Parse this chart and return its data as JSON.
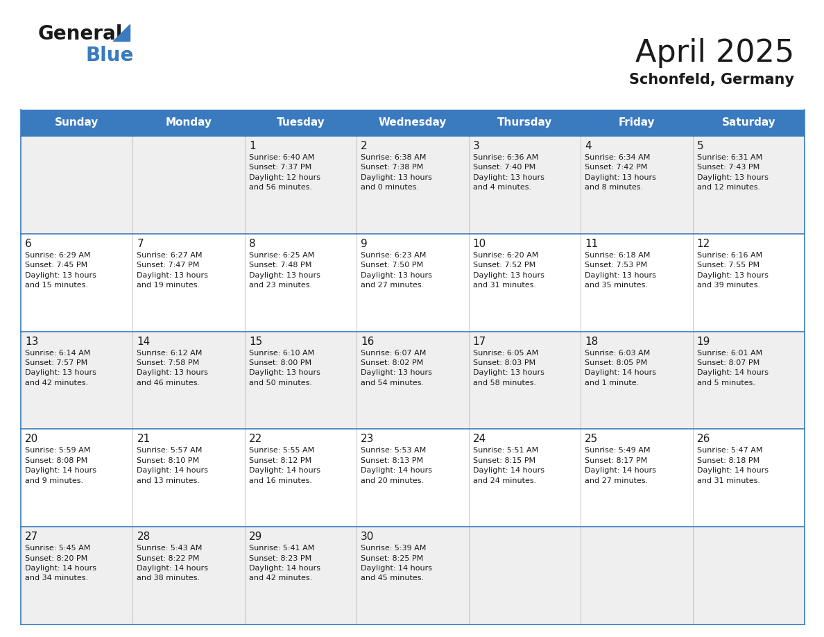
{
  "title": "April 2025",
  "subtitle": "Schonfeld, Germany",
  "header_color": "#3a7abf",
  "header_text_color": "#ffffff",
  "cell_bg_even": "#efefef",
  "cell_bg_odd": "#ffffff",
  "text_color": "#1a1a1a",
  "line_color": "#3a7abf",
  "days_of_week": [
    "Sunday",
    "Monday",
    "Tuesday",
    "Wednesday",
    "Thursday",
    "Friday",
    "Saturday"
  ],
  "weeks": [
    [
      {
        "day": null,
        "info": null
      },
      {
        "day": null,
        "info": null
      },
      {
        "day": "1",
        "info": "Sunrise: 6:40 AM\nSunset: 7:37 PM\nDaylight: 12 hours\nand 56 minutes."
      },
      {
        "day": "2",
        "info": "Sunrise: 6:38 AM\nSunset: 7:38 PM\nDaylight: 13 hours\nand 0 minutes."
      },
      {
        "day": "3",
        "info": "Sunrise: 6:36 AM\nSunset: 7:40 PM\nDaylight: 13 hours\nand 4 minutes."
      },
      {
        "day": "4",
        "info": "Sunrise: 6:34 AM\nSunset: 7:42 PM\nDaylight: 13 hours\nand 8 minutes."
      },
      {
        "day": "5",
        "info": "Sunrise: 6:31 AM\nSunset: 7:43 PM\nDaylight: 13 hours\nand 12 minutes."
      }
    ],
    [
      {
        "day": "6",
        "info": "Sunrise: 6:29 AM\nSunset: 7:45 PM\nDaylight: 13 hours\nand 15 minutes."
      },
      {
        "day": "7",
        "info": "Sunrise: 6:27 AM\nSunset: 7:47 PM\nDaylight: 13 hours\nand 19 minutes."
      },
      {
        "day": "8",
        "info": "Sunrise: 6:25 AM\nSunset: 7:48 PM\nDaylight: 13 hours\nand 23 minutes."
      },
      {
        "day": "9",
        "info": "Sunrise: 6:23 AM\nSunset: 7:50 PM\nDaylight: 13 hours\nand 27 minutes."
      },
      {
        "day": "10",
        "info": "Sunrise: 6:20 AM\nSunset: 7:52 PM\nDaylight: 13 hours\nand 31 minutes."
      },
      {
        "day": "11",
        "info": "Sunrise: 6:18 AM\nSunset: 7:53 PM\nDaylight: 13 hours\nand 35 minutes."
      },
      {
        "day": "12",
        "info": "Sunrise: 6:16 AM\nSunset: 7:55 PM\nDaylight: 13 hours\nand 39 minutes."
      }
    ],
    [
      {
        "day": "13",
        "info": "Sunrise: 6:14 AM\nSunset: 7:57 PM\nDaylight: 13 hours\nand 42 minutes."
      },
      {
        "day": "14",
        "info": "Sunrise: 6:12 AM\nSunset: 7:58 PM\nDaylight: 13 hours\nand 46 minutes."
      },
      {
        "day": "15",
        "info": "Sunrise: 6:10 AM\nSunset: 8:00 PM\nDaylight: 13 hours\nand 50 minutes."
      },
      {
        "day": "16",
        "info": "Sunrise: 6:07 AM\nSunset: 8:02 PM\nDaylight: 13 hours\nand 54 minutes."
      },
      {
        "day": "17",
        "info": "Sunrise: 6:05 AM\nSunset: 8:03 PM\nDaylight: 13 hours\nand 58 minutes."
      },
      {
        "day": "18",
        "info": "Sunrise: 6:03 AM\nSunset: 8:05 PM\nDaylight: 14 hours\nand 1 minute."
      },
      {
        "day": "19",
        "info": "Sunrise: 6:01 AM\nSunset: 8:07 PM\nDaylight: 14 hours\nand 5 minutes."
      }
    ],
    [
      {
        "day": "20",
        "info": "Sunrise: 5:59 AM\nSunset: 8:08 PM\nDaylight: 14 hours\nand 9 minutes."
      },
      {
        "day": "21",
        "info": "Sunrise: 5:57 AM\nSunset: 8:10 PM\nDaylight: 14 hours\nand 13 minutes."
      },
      {
        "day": "22",
        "info": "Sunrise: 5:55 AM\nSunset: 8:12 PM\nDaylight: 14 hours\nand 16 minutes."
      },
      {
        "day": "23",
        "info": "Sunrise: 5:53 AM\nSunset: 8:13 PM\nDaylight: 14 hours\nand 20 minutes."
      },
      {
        "day": "24",
        "info": "Sunrise: 5:51 AM\nSunset: 8:15 PM\nDaylight: 14 hours\nand 24 minutes."
      },
      {
        "day": "25",
        "info": "Sunrise: 5:49 AM\nSunset: 8:17 PM\nDaylight: 14 hours\nand 27 minutes."
      },
      {
        "day": "26",
        "info": "Sunrise: 5:47 AM\nSunset: 8:18 PM\nDaylight: 14 hours\nand 31 minutes."
      }
    ],
    [
      {
        "day": "27",
        "info": "Sunrise: 5:45 AM\nSunset: 8:20 PM\nDaylight: 14 hours\nand 34 minutes."
      },
      {
        "day": "28",
        "info": "Sunrise: 5:43 AM\nSunset: 8:22 PM\nDaylight: 14 hours\nand 38 minutes."
      },
      {
        "day": "29",
        "info": "Sunrise: 5:41 AM\nSunset: 8:23 PM\nDaylight: 14 hours\nand 42 minutes."
      },
      {
        "day": "30",
        "info": "Sunrise: 5:39 AM\nSunset: 8:25 PM\nDaylight: 14 hours\nand 45 minutes."
      },
      {
        "day": null,
        "info": null
      },
      {
        "day": null,
        "info": null
      },
      {
        "day": null,
        "info": null
      }
    ]
  ],
  "logo_general_color": "#1a1a1a",
  "logo_blue_color": "#3a7abf",
  "title_fontsize": 32,
  "subtitle_fontsize": 15,
  "header_fontsize": 11,
  "day_num_fontsize": 11,
  "info_fontsize": 8
}
